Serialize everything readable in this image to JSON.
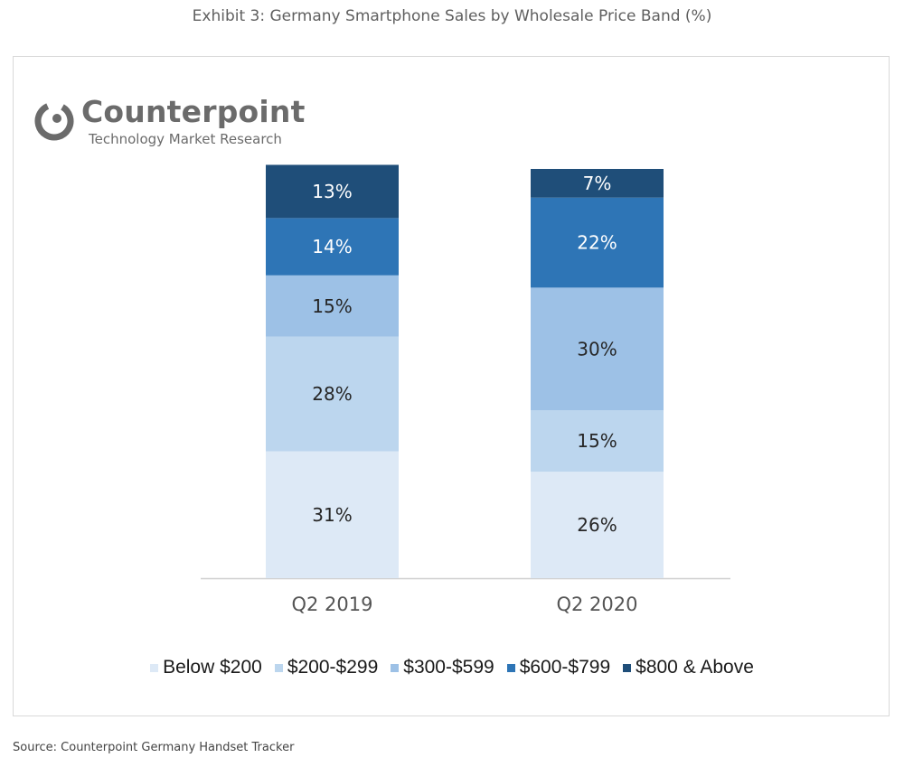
{
  "page": {
    "exhibit_title": "Exhibit 3: Germany Smartphone Sales by Wholesale Price Band (%)",
    "source": "Source: Counterpoint Germany Handset Tracker"
  },
  "logo": {
    "name": "Counterpoint",
    "tagline": "Technology Market Research",
    "color": "#6b6b6b"
  },
  "chart_data": {
    "type": "bar",
    "stacked": true,
    "title": "",
    "xlabel": "",
    "ylabel": "",
    "ylim": [
      0,
      100
    ],
    "grid": false,
    "legend_position": "bottom",
    "categories": [
      "Q2 2019",
      "Q2 2020"
    ],
    "series": [
      {
        "name": "Below $200",
        "values": [
          31,
          26
        ],
        "color": "#dde9f6",
        "labels": [
          "31%",
          "26%"
        ]
      },
      {
        "name": "$200-$299",
        "values": [
          28,
          15
        ],
        "color": "#bcd6ee",
        "labels": [
          "28%",
          "15%"
        ]
      },
      {
        "name": "$300-$599",
        "values": [
          15,
          30
        ],
        "color": "#9dc1e6",
        "labels": [
          "15%",
          "30%"
        ]
      },
      {
        "name": "$600-$799",
        "values": [
          14,
          22
        ],
        "color": "#2e75b6",
        "labels": [
          "14%",
          "22%"
        ]
      },
      {
        "name": "$800 & Above",
        "values": [
          13,
          7
        ],
        "color": "#1f4e79",
        "labels": [
          "13%",
          "7%"
        ]
      }
    ]
  }
}
